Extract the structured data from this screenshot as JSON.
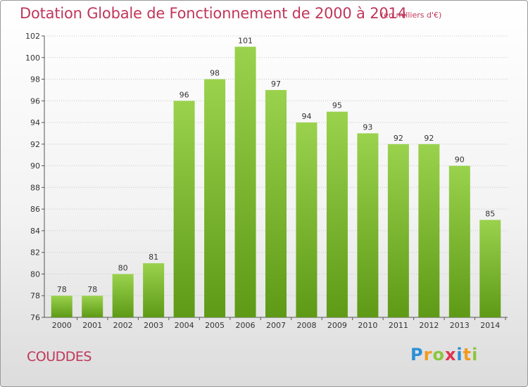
{
  "header": {
    "title": "Dotation Globale de Fonctionnement de 2000 à 2014",
    "subtitle": "(en milliers d'€)"
  },
  "footer": {
    "commune": "COUDDES",
    "logo": "Proxiti"
  },
  "colors": {
    "title": "#c1365a",
    "bar_top": "#9ad24d",
    "bar_bottom": "#5e9a16",
    "grid": "#c8c8c8"
  },
  "chart_data": {
    "type": "bar",
    "title": "Dotation Globale de Fonctionnement de 2000 à 2014",
    "subtitle": "(en milliers d'€)",
    "xlabel": "",
    "ylabel": "",
    "categories": [
      "2000",
      "2001",
      "2002",
      "2003",
      "2004",
      "2005",
      "2006",
      "2007",
      "2008",
      "2009",
      "2010",
      "2011",
      "2012",
      "2013",
      "2014"
    ],
    "values": [
      78,
      78,
      80,
      81,
      96,
      98,
      101,
      97,
      94,
      95,
      93,
      92,
      92,
      90,
      85
    ],
    "ylim": [
      76,
      102
    ],
    "yticks": [
      76,
      78,
      80,
      82,
      84,
      86,
      88,
      90,
      92,
      94,
      96,
      98,
      100,
      102
    ],
    "grid": true
  }
}
